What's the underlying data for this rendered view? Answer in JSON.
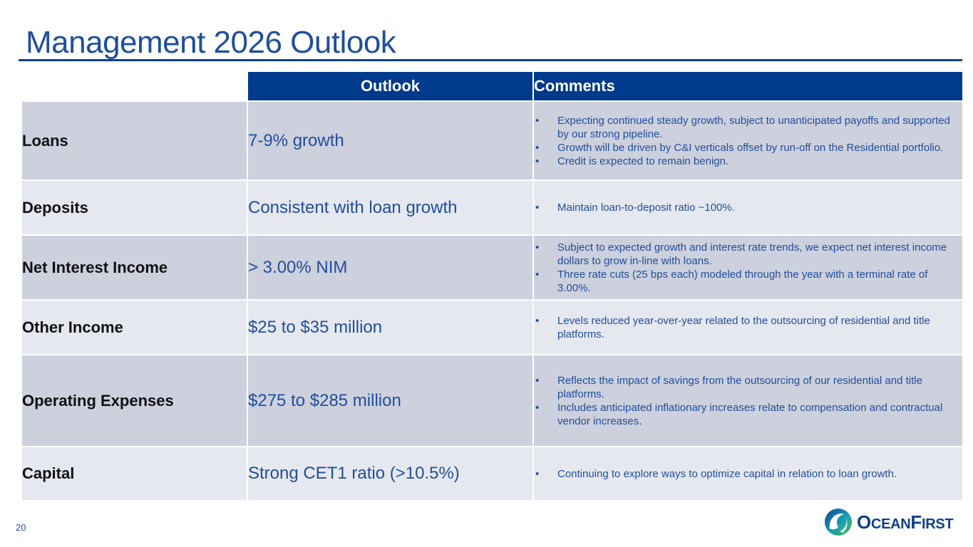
{
  "slide": {
    "title": "Management 2026 Outlook",
    "page_number": "20"
  },
  "table": {
    "headers": [
      "Outlook",
      "Comments"
    ],
    "rows": [
      {
        "label": "Loans",
        "outlook": "7-9% growth",
        "comments": [
          "Expecting continued steady growth, subject to unanticipated payoffs and supported by our strong pipeline.",
          "Growth will be driven by C&I verticals offset by run-off on the Residential portfolio.",
          "Credit is expected to remain benign."
        ]
      },
      {
        "label": "Deposits",
        "outlook": "Consistent with loan growth",
        "comments": [
          "Maintain loan-to-deposit ratio ~100%."
        ]
      },
      {
        "label": "Net Interest Income",
        "outlook": "> 3.00% NIM",
        "comments": [
          "Subject to expected growth and interest rate trends, we expect net interest income dollars to grow in-line with loans.",
          "Three rate cuts (25 bps each) modeled through the year with a terminal rate of 3.00%."
        ]
      },
      {
        "label": "Other Income",
        "outlook": "$25 to $35 million",
        "comments": [
          "Levels reduced year-over-year related to the outsourcing of residential and title platforms."
        ]
      },
      {
        "label": "Operating Expenses",
        "outlook": "$275 to $285 million",
        "comments": [
          "Reflects the impact of savings from the outsourcing of our residential and title platforms.",
          "Includes anticipated inflationary increases relate to compensation and contractual vendor increases."
        ]
      },
      {
        "label": "Capital",
        "outlook": "Strong CET1 ratio (>10.5%)",
        "comments": [
          "Continuing to explore ways to optimize capital in relation to loan growth."
        ]
      }
    ]
  },
  "bullet_symbol": "•",
  "logo": {
    "icon": "oceanfirst-wave-icon",
    "text_parts": [
      "O",
      "CEAN",
      "F",
      "IRST"
    ],
    "colors": {
      "navy": "#0f3f8c",
      "teal": "#19a0b4",
      "green": "#4bb848"
    }
  },
  "colors": {
    "title": "#1f4e9c",
    "header_bg": "#003a8c",
    "row_dark": "#cdd0dd",
    "row_light": "#e6e8ef"
  }
}
